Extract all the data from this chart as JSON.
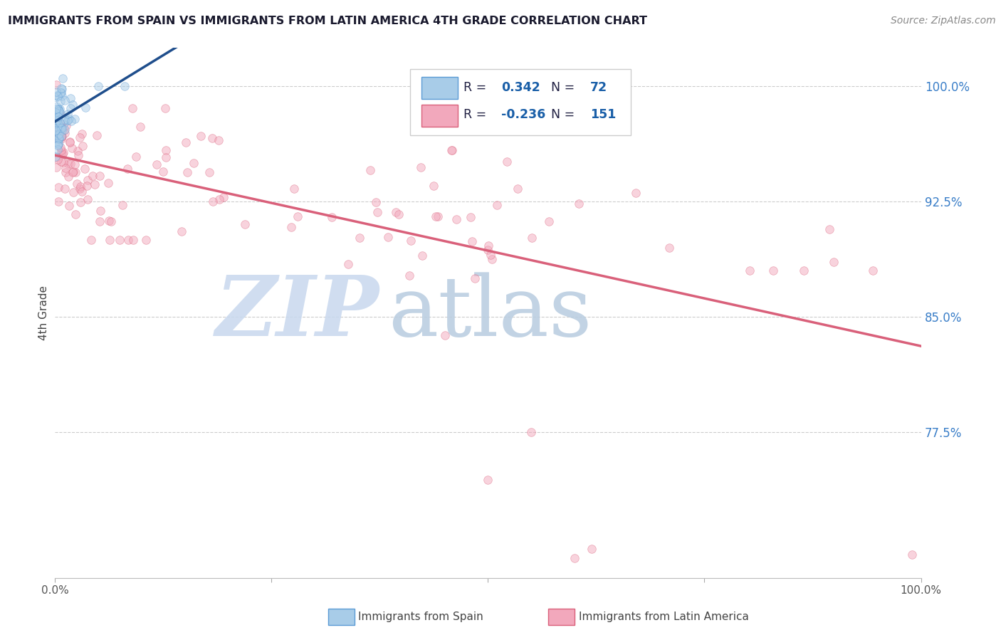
{
  "title": "IMMIGRANTS FROM SPAIN VS IMMIGRANTS FROM LATIN AMERICA 4TH GRADE CORRELATION CHART",
  "source": "Source: ZipAtlas.com",
  "ylabel": "4th Grade",
  "watermark_zip": "ZIP",
  "watermark_atlas": "atlas",
  "r_spain": 0.342,
  "n_spain": 72,
  "r_latin": -0.236,
  "n_latin": 151,
  "xlim": [
    0.0,
    1.0
  ],
  "ylim": [
    0.68,
    1.025
  ],
  "yticks": [
    0.775,
    0.85,
    0.925,
    1.0
  ],
  "ytick_labels": [
    "77.5%",
    "85.0%",
    "92.5%",
    "100.0%"
  ],
  "xtick_positions": [
    0.0,
    0.25,
    0.5,
    0.75,
    1.0
  ],
  "xtick_labels": [
    "0.0%",
    "",
    "",
    "",
    "100.0%"
  ],
  "color_spain_fill": "#a8cce8",
  "color_spain_edge": "#5b9bd5",
  "color_spain_line": "#1f4e8c",
  "color_latin_fill": "#f2a8bc",
  "color_latin_edge": "#d9607a",
  "color_latin_line": "#d9607a",
  "marker_size": 70,
  "marker_alpha": 0.5,
  "grid_color": "#cccccc",
  "ytick_color": "#3a7ec8",
  "title_color": "#1a1a2e",
  "source_color": "#888888",
  "legend_border_color": "#cccccc",
  "legend_r_label_color": "#222244",
  "legend_val_color": "#1a5fa8",
  "bottom_legend_color": "#444444",
  "watermark_zip_color": "#c8d8ee",
  "watermark_atlas_color": "#b8cce0"
}
